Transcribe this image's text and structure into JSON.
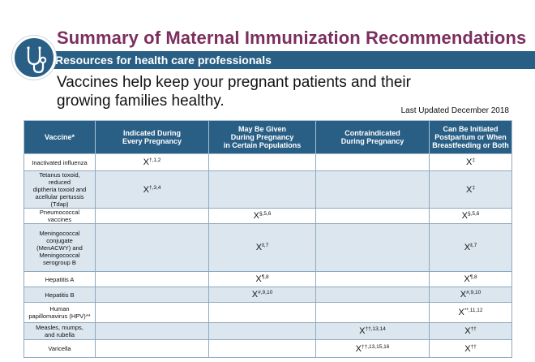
{
  "header": {
    "title": "Summary of Maternal Immunization Recommendations",
    "subtitle": "Resources for health care professionals",
    "intro_line1": "Vaccines help keep your pregnant patients and their",
    "intro_line2": "growing families healthy.",
    "last_updated": "Last Updated December 2018",
    "icon": "stethoscope-icon"
  },
  "colors": {
    "title": "#7b2f5e",
    "bar": "#2a5f85",
    "row_alt": "#dbe6ef"
  },
  "table": {
    "headers": [
      [
        "Vaccine*"
      ],
      [
        "Indicated During",
        "Every Pregnancy"
      ],
      [
        "May Be Given",
        "During Pregnancy",
        "in Certain Populations"
      ],
      [
        "Contraindicated",
        "During Pregnancy"
      ],
      [
        "Can Be Initiated",
        "Postpartum or When",
        "Breastfeeding or Both"
      ]
    ],
    "rows": [
      {
        "vaccine": [
          "Inactivated influenza"
        ],
        "every": "†,1,2",
        "certain": null,
        "contra": null,
        "postpartum": "‡"
      },
      {
        "vaccine": [
          "Tetanus toxoid, reduced",
          "diptheria toxoid and",
          "acellular pertussis (Tdap)"
        ],
        "every": "†,3,4",
        "certain": null,
        "contra": null,
        "postpartum": "‡"
      },
      {
        "vaccine": [
          "Pneumococcal vaccines"
        ],
        "every": null,
        "certain": "§,5,6",
        "contra": null,
        "postpartum": "§,5,6"
      },
      {
        "vaccine": [
          "Meningococcal",
          "conjugate",
          "(MenACWY) and",
          "Meningococcal",
          "serogroup B"
        ],
        "every": null,
        "certain": "‖,7",
        "contra": null,
        "postpartum": "‖,7"
      },
      {
        "vaccine": [
          "Hepatitis A"
        ],
        "every": null,
        "certain": "¶,8",
        "contra": null,
        "postpartum": "¶,8"
      },
      {
        "vaccine": [
          "Hepatitis B"
        ],
        "every": null,
        "certain": "#,9,10",
        "contra": null,
        "postpartum": "#,9,10"
      },
      {
        "vaccine": [
          "Human",
          "papillomavirus (HPV)**"
        ],
        "every": null,
        "certain": null,
        "contra": null,
        "postpartum": "**,11,12"
      },
      {
        "vaccine": [
          "Measles, mumps,",
          "and rubella"
        ],
        "every": null,
        "certain": null,
        "contra": "††,13,14",
        "postpartum": "††"
      },
      {
        "vaccine": [
          "Varicella"
        ],
        "every": null,
        "certain": null,
        "contra": "††,13,15,16",
        "postpartum": "††"
      }
    ]
  }
}
